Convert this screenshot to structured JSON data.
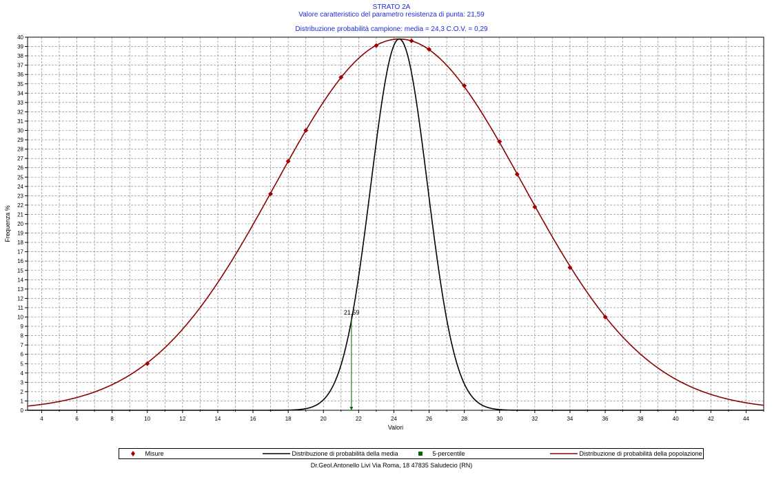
{
  "header": {
    "title": "STRATO 2A",
    "subtitle": "Valore caratteristico del parametro resistenza di punta: 21,59",
    "distribution_info": "Distribuzione probabilità campione: media = 24,3 C.O.V. = 0,29"
  },
  "footer": {
    "text": "Dr.Geol.Antonello Livi Via Roma, 18 47835 Saludecio (RN)"
  },
  "legend": {
    "items": [
      {
        "label": "Misure",
        "color": "#a00000",
        "marker": "diamond"
      },
      {
        "label": "Distribuzione di probabilità della media",
        "color": "#000000",
        "marker": "line"
      },
      {
        "label": "5-percentile",
        "color": "#006400",
        "marker": "square"
      },
      {
        "label": "Distribuzione di probabilità della popolazione",
        "color": "#8b0000",
        "marker": "line"
      }
    ]
  },
  "chart_data": {
    "type": "line",
    "xlabel": "Valori",
    "ylabel": "Frequenza %",
    "xlim": [
      3.2,
      45
    ],
    "ylim": [
      0,
      40
    ],
    "xticks": [
      4,
      6,
      8,
      10,
      12,
      14,
      16,
      18,
      20,
      22,
      24,
      26,
      28,
      30,
      32,
      34,
      36,
      38,
      40,
      42,
      44
    ],
    "yticks": [
      0,
      1,
      2,
      3,
      4,
      5,
      6,
      7,
      8,
      9,
      10,
      11,
      12,
      13,
      14,
      15,
      16,
      17,
      18,
      19,
      20,
      21,
      22,
      23,
      24,
      25,
      26,
      27,
      28,
      29,
      30,
      31,
      32,
      33,
      34,
      35,
      36,
      37,
      38,
      39,
      40
    ],
    "grid": true,
    "legend_position": "bottom",
    "series": [
      {
        "name": "Misure",
        "style": "markers",
        "color": "#a00000",
        "points": [
          [
            10,
            5.0
          ],
          [
            17,
            23.2
          ],
          [
            18,
            26.7
          ],
          [
            19,
            30.0
          ],
          [
            21,
            35.7
          ],
          [
            23,
            39.1
          ],
          [
            25,
            39.6
          ],
          [
            26,
            38.7
          ],
          [
            28,
            34.8
          ],
          [
            30,
            28.8
          ],
          [
            31,
            25.3
          ],
          [
            32,
            21.8
          ],
          [
            34,
            15.3
          ],
          [
            36,
            10.0
          ]
        ]
      },
      {
        "name": "Distribuzione di probabilità della media",
        "style": "line",
        "color": "#000000",
        "mean": 24.3,
        "sd": 1.61,
        "peak": 39.8
      },
      {
        "name": "Distribuzione di probabilità della popolazione",
        "style": "line",
        "color": "#8b0000",
        "mean": 24.3,
        "sd": 7.05,
        "peak": 39.8
      }
    ],
    "percentile_5": {
      "name": "5-percentile",
      "x": 21.59,
      "label": "21,59",
      "height": 10.1,
      "color": "#006400"
    }
  }
}
